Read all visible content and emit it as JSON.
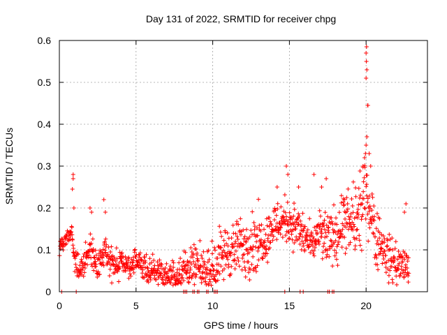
{
  "chart_data": {
    "type": "scatter",
    "title": "Day 131 of 2022, SRMTID for receiver chpg",
    "xlabel": "GPS time / hours",
    "ylabel": "SRMTID / TECUs",
    "xlim": [
      0,
      24
    ],
    "ylim": [
      0,
      0.6
    ],
    "grid": true,
    "marker": "+",
    "color": "#ff0000",
    "x_ticks": [
      0,
      5,
      10,
      15,
      20
    ],
    "x_tick_labels": [
      "0",
      "5",
      "10",
      "15",
      "20"
    ],
    "y_ticks": [
      0,
      0.1,
      0.2,
      0.3,
      0.4,
      0.5,
      0.6
    ],
    "y_tick_labels": [
      "0",
      "0.1",
      "0.2",
      "0.3",
      "0.4",
      "0.5",
      "0.6"
    ],
    "trend": [
      [
        0.0,
        0.11
      ],
      [
        0.3,
        0.12
      ],
      [
        0.6,
        0.13
      ],
      [
        0.8,
        0.14
      ],
      [
        1.0,
        0.07
      ],
      [
        1.3,
        0.05
      ],
      [
        1.6,
        0.07
      ],
      [
        2.0,
        0.1
      ],
      [
        2.5,
        0.06
      ],
      [
        3.0,
        0.1
      ],
      [
        3.5,
        0.06
      ],
      [
        4.0,
        0.07
      ],
      [
        4.5,
        0.06
      ],
      [
        5.0,
        0.07
      ],
      [
        5.5,
        0.06
      ],
      [
        6.0,
        0.05
      ],
      [
        6.5,
        0.05
      ],
      [
        7.0,
        0.04
      ],
      [
        7.5,
        0.04
      ],
      [
        8.0,
        0.05
      ],
      [
        8.5,
        0.06
      ],
      [
        9.0,
        0.06
      ],
      [
        9.5,
        0.05
      ],
      [
        10.0,
        0.06
      ],
      [
        10.5,
        0.08
      ],
      [
        11.0,
        0.1
      ],
      [
        11.5,
        0.1
      ],
      [
        12.0,
        0.11
      ],
      [
        12.5,
        0.12
      ],
      [
        13.0,
        0.12
      ],
      [
        13.5,
        0.13
      ],
      [
        14.0,
        0.16
      ],
      [
        14.5,
        0.17
      ],
      [
        15.0,
        0.17
      ],
      [
        15.5,
        0.15
      ],
      [
        16.0,
        0.13
      ],
      [
        16.5,
        0.11
      ],
      [
        17.0,
        0.14
      ],
      [
        17.5,
        0.12
      ],
      [
        18.0,
        0.14
      ],
      [
        18.5,
        0.16
      ],
      [
        19.0,
        0.16
      ],
      [
        19.5,
        0.17
      ],
      [
        20.0,
        0.24
      ],
      [
        20.3,
        0.2
      ],
      [
        20.6,
        0.14
      ],
      [
        21.0,
        0.11
      ],
      [
        21.5,
        0.08
      ],
      [
        22.0,
        0.07
      ],
      [
        22.5,
        0.06
      ],
      [
        22.8,
        0.06
      ]
    ],
    "scatter": [
      0.02,
      0.03,
      0.035,
      0.035,
      0.025,
      0.03,
      0.03,
      0.035,
      0.05,
      0.05,
      0.06,
      0.06,
      0.07,
      0.05,
      0.05,
      0.05,
      0.04,
      0.06,
      0.07,
      0.08,
      0.07,
      0.05,
      0.04
    ],
    "peaks": [
      [
        0.9,
        0.28
      ],
      [
        0.9,
        0.27
      ],
      [
        0.85,
        0.245
      ],
      [
        0.95,
        0.2
      ],
      [
        2.0,
        0.2
      ],
      [
        2.1,
        0.19
      ],
      [
        2.9,
        0.22
      ],
      [
        3.0,
        0.19
      ],
      [
        14.2,
        0.25
      ],
      [
        14.8,
        0.3
      ],
      [
        14.9,
        0.28
      ],
      [
        15.6,
        0.25
      ],
      [
        16.6,
        0.28
      ],
      [
        17.4,
        0.27
      ],
      [
        17.1,
        0.25
      ],
      [
        18.6,
        0.22
      ],
      [
        19.8,
        0.3
      ],
      [
        19.9,
        0.32
      ],
      [
        20.0,
        0.35
      ],
      [
        20.05,
        0.37
      ],
      [
        20.1,
        0.445
      ],
      [
        20.12,
        0.445
      ],
      [
        20.0,
        0.51
      ],
      [
        20.05,
        0.53
      ],
      [
        20.02,
        0.55
      ],
      [
        20.0,
        0.57
      ],
      [
        20.03,
        0.585
      ],
      [
        20.2,
        0.33
      ],
      [
        20.3,
        0.3
      ],
      [
        22.6,
        0.21
      ],
      [
        22.5,
        0.19
      ]
    ],
    "zero_points": [
      0.15,
      1.1,
      8.1,
      8.2,
      8.3,
      8.7,
      8.8,
      9.0,
      9.1,
      9.6,
      9.7,
      10.1,
      10.2,
      10.3,
      14.7,
      15.7,
      15.9,
      17.5,
      17.6,
      17.8,
      17.9
    ]
  }
}
